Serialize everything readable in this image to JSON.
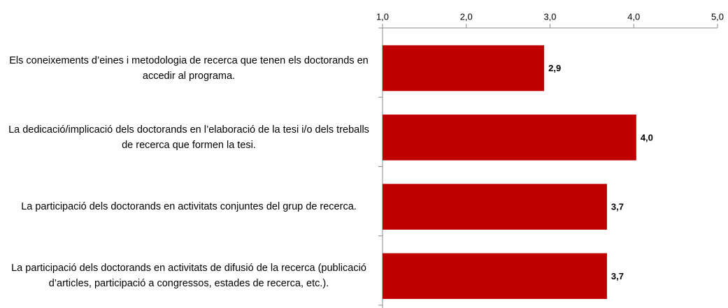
{
  "chart_data": {
    "type": "bar",
    "orientation": "horizontal",
    "categories": [
      "Els coneixements d’eines i metodologia de recerca que tenen els doctorands en accedir al programa.",
      "La dedicació/implicació dels doctorands en l’elaboració de la tesi i/o dels treballs de recerca que formen la tesi.",
      "La participació dels doctorands en activitats conjuntes del grup de recerca.",
      "La participació dels doctorands en activitats de difusió de la recerca (publicació d’articles, participació a congressos, estades de recerca, etc.)."
    ],
    "values": [
      2.93,
      4.03,
      3.68,
      3.68
    ],
    "value_labels": [
      "2,9",
      "4,0",
      "3,7",
      "3,7"
    ],
    "color": "#c00000",
    "xlim": [
      1,
      5
    ],
    "xticks": [
      {
        "value": 1,
        "label": "1,0"
      },
      {
        "value": 2,
        "label": "2,0"
      },
      {
        "value": 3,
        "label": "3,0"
      },
      {
        "value": 4,
        "label": "4,0"
      },
      {
        "value": 5,
        "label": "5,0"
      }
    ]
  }
}
